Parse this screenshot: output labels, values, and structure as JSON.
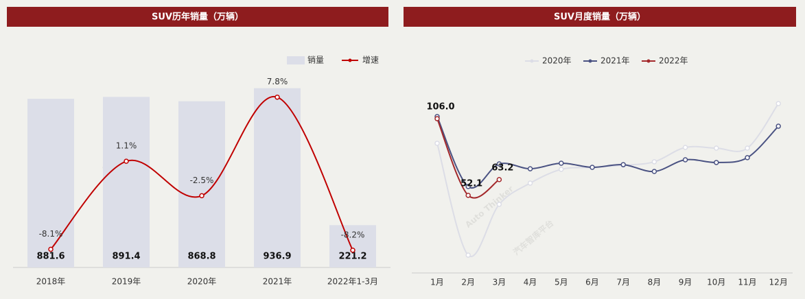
{
  "watermark": "Auto Thinker",
  "watermark_sub": "汽车智库平台",
  "chart_data": [
    {
      "type": "bar",
      "title": "SUV历年销量（万辆）",
      "categories": [
        "2018年",
        "2019年",
        "2020年",
        "2021年",
        "2022年1-3月"
      ],
      "series": [
        {
          "name": "销量",
          "color": "#dcdee8",
          "values": [
            881.6,
            891.4,
            868.8,
            936.9,
            221.2
          ]
        },
        {
          "name": "增速",
          "type": "line",
          "axis": "y2",
          "color": "#c00000",
          "values": [
            -8.1,
            1.1,
            -2.5,
            7.8,
            -8.2
          ],
          "value_labels": [
            "-8.1%",
            "1.1%",
            "-2.5%",
            "7.8%",
            "-8.2%"
          ]
        }
      ],
      "ylim": [
        0,
        1000
      ],
      "y2lim": [
        -10,
        10
      ],
      "legend": "top-right"
    },
    {
      "type": "line",
      "title": "SUV月度销量（万辆）",
      "categories": [
        "1月",
        "2月",
        "3月",
        "4月",
        "5月",
        "6月",
        "7月",
        "8月",
        "9月",
        "10月",
        "11月",
        "12月"
      ],
      "series": [
        {
          "name": "2020年",
          "color": "#dcdde6",
          "values": [
            88.7,
            10.1,
            45.8,
            60.7,
            70.4,
            71.8,
            73.3,
            75.7,
            85.8,
            85.3,
            85.3,
            116.6
          ]
        },
        {
          "name": "2021年",
          "color": "#4a5282",
          "values": [
            107.5,
            58.3,
            74.2,
            70.8,
            74.7,
            71.8,
            73.7,
            68.9,
            77.1,
            75.2,
            78.6,
            100.7
          ]
        },
        {
          "name": "2022年",
          "color": "#a3282b",
          "values": [
            106.0,
            52.1,
            63.2,
            null,
            null,
            null,
            null,
            null,
            null,
            null,
            null,
            null
          ],
          "value_labels": [
            "106.0",
            "52.1",
            "63.2",
            null,
            null,
            null,
            null,
            null,
            null,
            null,
            null,
            null
          ]
        }
      ],
      "ylim": [
        0,
        120
      ],
      "legend": "top"
    }
  ]
}
